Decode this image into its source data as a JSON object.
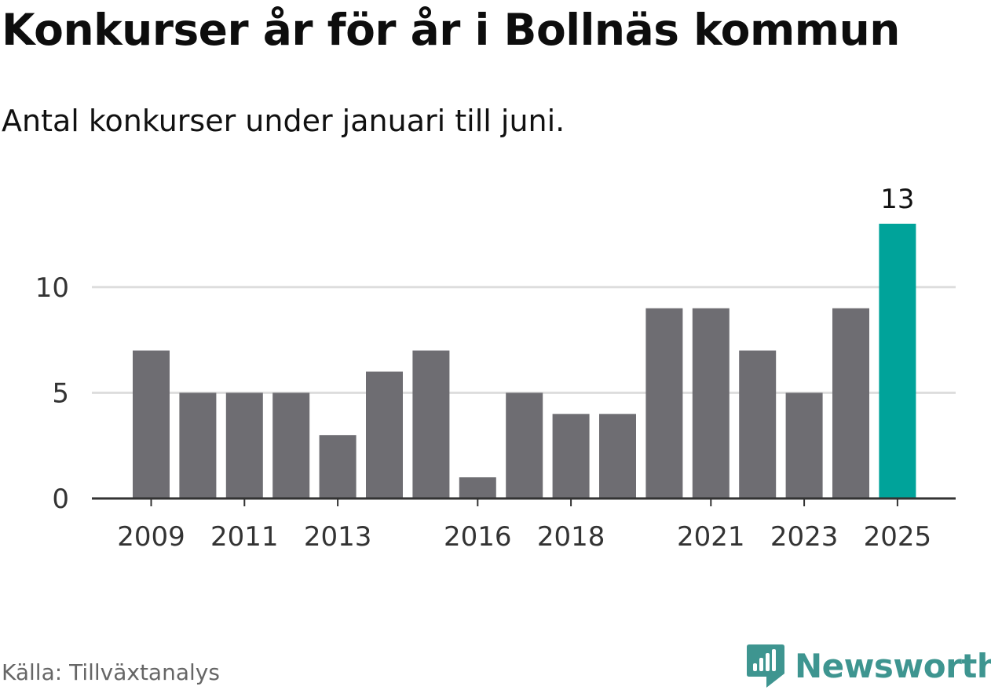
{
  "header": {
    "title": "Konkurser år för år i Bollnäs kommun",
    "subtitle": "Antal konkurser under januari till juni."
  },
  "footer": {
    "source": "Källa: Tillväxtanalys",
    "brand": "Newsworthy",
    "brand_icon": "bar-chart-speech-bubble-icon"
  },
  "colors": {
    "bar": "#6e6d72",
    "highlight": "#00a39a",
    "grid": "#dddddd",
    "axis": "#333333",
    "brand": "#3e9590"
  },
  "chart_data": {
    "type": "bar",
    "categories": [
      "2009",
      "2010",
      "2011",
      "2012",
      "2013",
      "2014",
      "2015",
      "2016",
      "2017",
      "2018",
      "2019",
      "2020",
      "2021",
      "2022",
      "2023",
      "2024",
      "2025"
    ],
    "values": [
      7,
      5,
      5,
      5,
      3,
      6,
      7,
      1,
      5,
      4,
      4,
      9,
      9,
      7,
      5,
      9,
      13
    ],
    "x_tick_labels": [
      "2009",
      "2011",
      "2013",
      "2016",
      "2018",
      "2021",
      "2023",
      "2025"
    ],
    "y_ticks": [
      0,
      5,
      10
    ],
    "ylim": [
      0,
      13
    ],
    "grid": true,
    "highlight_category": "2025",
    "data_labels": [
      {
        "category": "2025",
        "text": "13"
      }
    ],
    "title": "Konkurser år för år i Bollnäs kommun",
    "subtitle": "Antal konkurser under januari till juni.",
    "xlabel": "",
    "ylabel": ""
  }
}
